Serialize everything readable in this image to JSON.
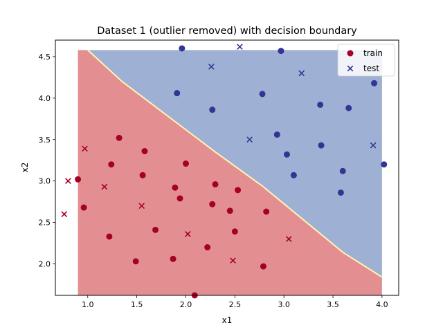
{
  "chart_data": {
    "type": "scatter",
    "title": "Dataset 1 (outlier removed) with decision boundary",
    "xlabel": "x1",
    "ylabel": "x2",
    "xlim": [
      0.67,
      4.17
    ],
    "ylim": [
      1.62,
      4.7
    ],
    "xticks": [
      "1.0",
      "1.5",
      "2.0",
      "2.5",
      "3.0",
      "3.5",
      "4.0"
    ],
    "yticks": [
      "2.0",
      "2.5",
      "3.0",
      "3.5",
      "4.0",
      "4.5"
    ],
    "grid": false,
    "legend_position": "top-right",
    "colors": {
      "class_0": "#a50026",
      "class_1": "#313695",
      "region_0": "#e38f92",
      "region_1": "#9eb0d3",
      "boundary": "#fff4b0"
    },
    "decision_region": {
      "x_range": [
        0.9,
        4.0
      ],
      "y_range": [
        1.62,
        4.58
      ],
      "boundary": [
        [
          1.0,
          4.58
        ],
        [
          1.35,
          4.2
        ],
        [
          2.3,
          3.35
        ],
        [
          2.78,
          2.94
        ],
        [
          3.6,
          2.14
        ],
        [
          4.0,
          1.84
        ]
      ]
    },
    "series": [
      {
        "name": "train",
        "marker": "circle",
        "points": [
          {
            "x": 0.9,
            "y": 3.02,
            "class": 0
          },
          {
            "x": 0.96,
            "y": 2.68,
            "class": 0
          },
          {
            "x": 1.22,
            "y": 2.33,
            "class": 0
          },
          {
            "x": 1.24,
            "y": 3.2,
            "class": 0
          },
          {
            "x": 1.32,
            "y": 3.52,
            "class": 0
          },
          {
            "x": 1.49,
            "y": 2.03,
            "class": 0
          },
          {
            "x": 1.56,
            "y": 3.07,
            "class": 0
          },
          {
            "x": 1.58,
            "y": 3.36,
            "class": 0
          },
          {
            "x": 1.69,
            "y": 2.41,
            "class": 0
          },
          {
            "x": 1.87,
            "y": 2.06,
            "class": 0
          },
          {
            "x": 1.89,
            "y": 2.92,
            "class": 0
          },
          {
            "x": 1.94,
            "y": 2.79,
            "class": 0
          },
          {
            "x": 2.0,
            "y": 3.21,
            "class": 0
          },
          {
            "x": 2.09,
            "y": 1.62,
            "class": 0
          },
          {
            "x": 2.22,
            "y": 2.2,
            "class": 0
          },
          {
            "x": 2.27,
            "y": 2.72,
            "class": 0
          },
          {
            "x": 2.3,
            "y": 2.96,
            "class": 0
          },
          {
            "x": 2.45,
            "y": 2.64,
            "class": 0
          },
          {
            "x": 2.5,
            "y": 2.39,
            "class": 0
          },
          {
            "x": 2.53,
            "y": 2.89,
            "class": 0
          },
          {
            "x": 2.79,
            "y": 1.97,
            "class": 0
          },
          {
            "x": 2.82,
            "y": 2.63,
            "class": 0
          },
          {
            "x": 1.91,
            "y": 4.06,
            "class": 1
          },
          {
            "x": 1.96,
            "y": 4.6,
            "class": 1
          },
          {
            "x": 2.27,
            "y": 3.86,
            "class": 1
          },
          {
            "x": 2.78,
            "y": 4.05,
            "class": 1
          },
          {
            "x": 2.93,
            "y": 3.56,
            "class": 1
          },
          {
            "x": 2.97,
            "y": 4.57,
            "class": 1
          },
          {
            "x": 3.03,
            "y": 3.32,
            "class": 1
          },
          {
            "x": 3.1,
            "y": 3.07,
            "class": 1
          },
          {
            "x": 3.37,
            "y": 3.92,
            "class": 1
          },
          {
            "x": 3.38,
            "y": 3.43,
            "class": 1
          },
          {
            "x": 3.58,
            "y": 2.86,
            "class": 1
          },
          {
            "x": 3.6,
            "y": 3.12,
            "class": 1
          },
          {
            "x": 3.66,
            "y": 3.88,
            "class": 1
          },
          {
            "x": 3.92,
            "y": 4.18,
            "class": 1
          },
          {
            "x": 4.02,
            "y": 3.2,
            "class": 1
          }
        ]
      },
      {
        "name": "test",
        "marker": "x",
        "points": [
          {
            "x": 0.76,
            "y": 2.6,
            "class": 0
          },
          {
            "x": 0.8,
            "y": 3.0,
            "class": 0
          },
          {
            "x": 0.97,
            "y": 3.39,
            "class": 0
          },
          {
            "x": 1.17,
            "y": 2.93,
            "class": 0
          },
          {
            "x": 1.55,
            "y": 2.7,
            "class": 0
          },
          {
            "x": 2.02,
            "y": 2.36,
            "class": 0
          },
          {
            "x": 2.48,
            "y": 2.04,
            "class": 0
          },
          {
            "x": 3.05,
            "y": 2.3,
            "class": 0
          },
          {
            "x": 2.26,
            "y": 4.38,
            "class": 1
          },
          {
            "x": 2.55,
            "y": 4.62,
            "class": 1
          },
          {
            "x": 2.65,
            "y": 3.5,
            "class": 1
          },
          {
            "x": 3.18,
            "y": 4.3,
            "class": 1
          },
          {
            "x": 3.91,
            "y": 3.43,
            "class": 1
          }
        ]
      }
    ]
  }
}
